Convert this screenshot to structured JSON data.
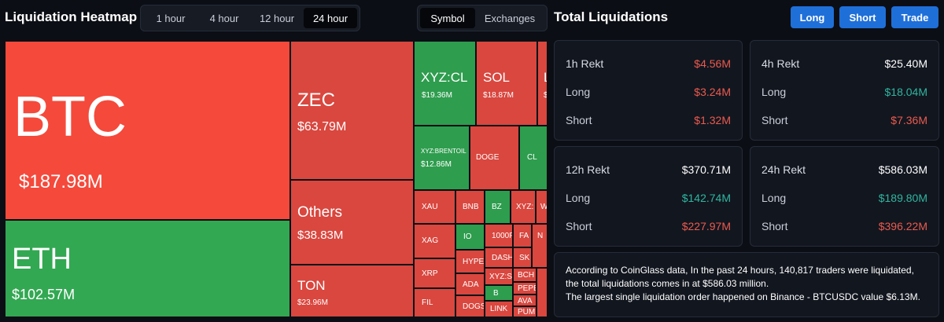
{
  "header": {
    "title": "Liquidation Heatmap",
    "time_tabs": [
      "1 hour",
      "4 hour",
      "12 hour",
      "24 hour"
    ],
    "time_active": "24 hour",
    "type_tabs": [
      "Symbol",
      "Exchanges"
    ],
    "type_active": "Symbol"
  },
  "totals": {
    "title": "Total Liquidations",
    "buttons": {
      "long": "Long",
      "short": "Short",
      "trade": "Trade"
    }
  },
  "treemap": {
    "btc": {
      "symbol": "BTC",
      "value": "$187.98M"
    },
    "eth": {
      "symbol": "ETH",
      "value": "$102.57M"
    },
    "zec": {
      "symbol": "ZEC",
      "value": "$63.79M"
    },
    "others": {
      "symbol": "Others",
      "value": "$38.83M"
    },
    "ton": {
      "symbol": "TON",
      "value": "$23.96M"
    },
    "xyz_cl": {
      "symbol": "XYZ:CL",
      "value": "$19.36M"
    },
    "sol": {
      "symbol": "SOL",
      "value": "$18.87M"
    },
    "l_partial": {
      "symbol": "L",
      "value": "$"
    },
    "xyz_brentoil": {
      "symbol": "XYZ:BRENTOIL",
      "value": "$12.86M"
    },
    "small": {
      "doge": "DOGE",
      "cl": "CL",
      "xau": "XAU",
      "bnb": "BNB",
      "bz": "BZ",
      "xyz_partial": "XYZ:",
      "w_partial": "W",
      "xag": "XAG",
      "io": "IO",
      "thousand_partial": "1000F",
      "fa_partial": "FA",
      "n_partial": "N",
      "hype": "HYPE",
      "dash": "DASH",
      "sk_partial": "SK",
      "xrp": "XRP",
      "ada": "ADA",
      "xyz_s_partial": "XYZ:S",
      "bch": "BCH",
      "fil": "FIL",
      "b": "B",
      "pepe_partial": "PEPE",
      "dogs_partial": "DOGS",
      "link": "LINK",
      "ava_partial": "AVA",
      "pum_partial": "PUM"
    }
  },
  "stats": {
    "h1": {
      "title": "1h Rekt",
      "total": "$4.56M",
      "long_label": "Long",
      "long": "$3.24M",
      "short_label": "Short",
      "short": "$1.32M"
    },
    "h4": {
      "title": "4h Rekt",
      "total": "$25.40M",
      "long_label": "Long",
      "long": "$18.04M",
      "short_label": "Short",
      "short": "$7.36M"
    },
    "h12": {
      "title": "12h Rekt",
      "total": "$370.71M",
      "long_label": "Long",
      "long": "$142.74M",
      "short_label": "Short",
      "short": "$227.97M"
    },
    "h24": {
      "title": "24h Rekt",
      "total": "$586.03M",
      "long_label": "Long",
      "long": "$189.80M",
      "short_label": "Short",
      "short": "$396.22M"
    }
  },
  "info": {
    "line1": "According to CoinGlass data, In the past 24 hours, 140,817 traders were liquidated, the total liquidations comes in at $586.03 million.",
    "line2": "The largest single liquidation order happened on Binance - BTCUSDC value $6.13M."
  },
  "colors": {
    "background": "#0b0e14",
    "accent_blue": "#1f6fd9",
    "tile_red": "#d9473f",
    "tile_bright_red": "#f5493b",
    "tile_green": "#32a852",
    "text_red": "#ea5b4f",
    "text_green": "#2fb6a0"
  }
}
